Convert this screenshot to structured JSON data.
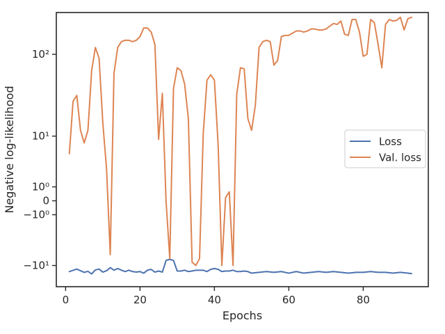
{
  "chart_data": {
    "type": "line",
    "xlabel": "Epochs",
    "ylabel": "Negative log-likelihood",
    "xlim": [
      -2.5,
      97.5
    ],
    "ylim": [
      -19,
      300
    ],
    "yscale": "symlog",
    "x_ticks": [
      0,
      20,
      40,
      60,
      80
    ],
    "y_ticks": [
      {
        "value": -10,
        "label": "−10¹"
      },
      {
        "value": -1,
        "label": "−10⁰"
      },
      {
        "value": 0,
        "label": "0"
      },
      {
        "value": 1,
        "label": "10⁰"
      },
      {
        "value": 10,
        "label": "10¹"
      },
      {
        "value": 100,
        "label": "10²"
      }
    ],
    "grid": false,
    "legend_position": "right",
    "colors": {
      "loss": "#4c72b0",
      "val_loss": "#dd8452",
      "axis": "#262626"
    },
    "series": [
      {
        "name": "Loss",
        "x": [
          1,
          3,
          5,
          6,
          7,
          8,
          9,
          10,
          11,
          12,
          13,
          14,
          15,
          16,
          17,
          18,
          19,
          20,
          21,
          22,
          23,
          24,
          25,
          26,
          27,
          28,
          29,
          30,
          31,
          32,
          33,
          34,
          35,
          36,
          37,
          38,
          39,
          40,
          41,
          42,
          43,
          44,
          45,
          46,
          47,
          48,
          49,
          50,
          52,
          54,
          56,
          58,
          60,
          62,
          64,
          66,
          68,
          70,
          72,
          74,
          76,
          78,
          80,
          82,
          84,
          86,
          88,
          90,
          92,
          93
        ],
        "y": [
          -12.1,
          -11.2,
          -12.4,
          -12.0,
          -13.0,
          -11.5,
          -11.2,
          -12.3,
          -11.8,
          -10.7,
          -11.6,
          -11.0,
          -11.6,
          -12.1,
          -11.6,
          -12.1,
          -12.3,
          -12.1,
          -12.7,
          -11.6,
          -11.3,
          -12.3,
          -11.9,
          -12.3,
          -8.5,
          -8.2,
          -8.5,
          -11.9,
          -11.9,
          -11.6,
          -12.1,
          -11.9,
          -11.6,
          -11.6,
          -11.6,
          -12.1,
          -11.3,
          -11.0,
          -11.3,
          -12.1,
          -11.9,
          -11.9,
          -11.6,
          -12.1,
          -12.1,
          -11.9,
          -12.1,
          -12.7,
          -12.4,
          -12.1,
          -12.4,
          -12.1,
          -12.7,
          -12.1,
          -12.7,
          -12.4,
          -12.1,
          -12.4,
          -12.1,
          -12.4,
          -12.7,
          -12.4,
          -12.4,
          -12.1,
          -12.4,
          -12.4,
          -12.7,
          -12.4,
          -12.7,
          -12.9
        ]
      },
      {
        "name": "Val. loss",
        "x": [
          1,
          2,
          3,
          4,
          5,
          6,
          7,
          8,
          9,
          10,
          11,
          12,
          13,
          14,
          15,
          16,
          17,
          18,
          19,
          20,
          21,
          22,
          23,
          24,
          25,
          26,
          27,
          28,
          29,
          30,
          31,
          32,
          33,
          34,
          35,
          36,
          37,
          38,
          39,
          40,
          41,
          42,
          43,
          44,
          45,
          46,
          47,
          48,
          49,
          50,
          51,
          52,
          53,
          54,
          55,
          56,
          57,
          58,
          59,
          60,
          61,
          62,
          63,
          64,
          65,
          66,
          67,
          68,
          69,
          70,
          71,
          72,
          73,
          74,
          75,
          76,
          77,
          78,
          79,
          80,
          81,
          82,
          83,
          84,
          85,
          86,
          87,
          88,
          89,
          90,
          91,
          92,
          93
        ],
        "y": [
          5.5,
          28,
          33,
          12,
          8,
          12,
          65,
          120,
          90,
          15,
          3,
          -7,
          60,
          120,
          140,
          145,
          145,
          140,
          145,
          160,
          200,
          200,
          180,
          130,
          9,
          35,
          -0.01,
          -8,
          40,
          70,
          65,
          45,
          17,
          -9,
          -10,
          -8,
          11,
          50,
          58,
          50,
          7.5,
          -10,
          0.2,
          0.6,
          -10,
          34,
          70,
          68,
          17,
          12,
          25,
          120,
          140,
          145,
          140,
          75,
          85,
          160,
          165,
          165,
          175,
          185,
          185,
          180,
          185,
          195,
          195,
          190,
          190,
          195,
          210,
          225,
          220,
          240,
          170,
          165,
          250,
          250,
          180,
          95,
          100,
          250,
          230,
          130,
          70,
          220,
          250,
          240,
          245,
          265,
          190,
          255,
          265
        ]
      }
    ]
  }
}
